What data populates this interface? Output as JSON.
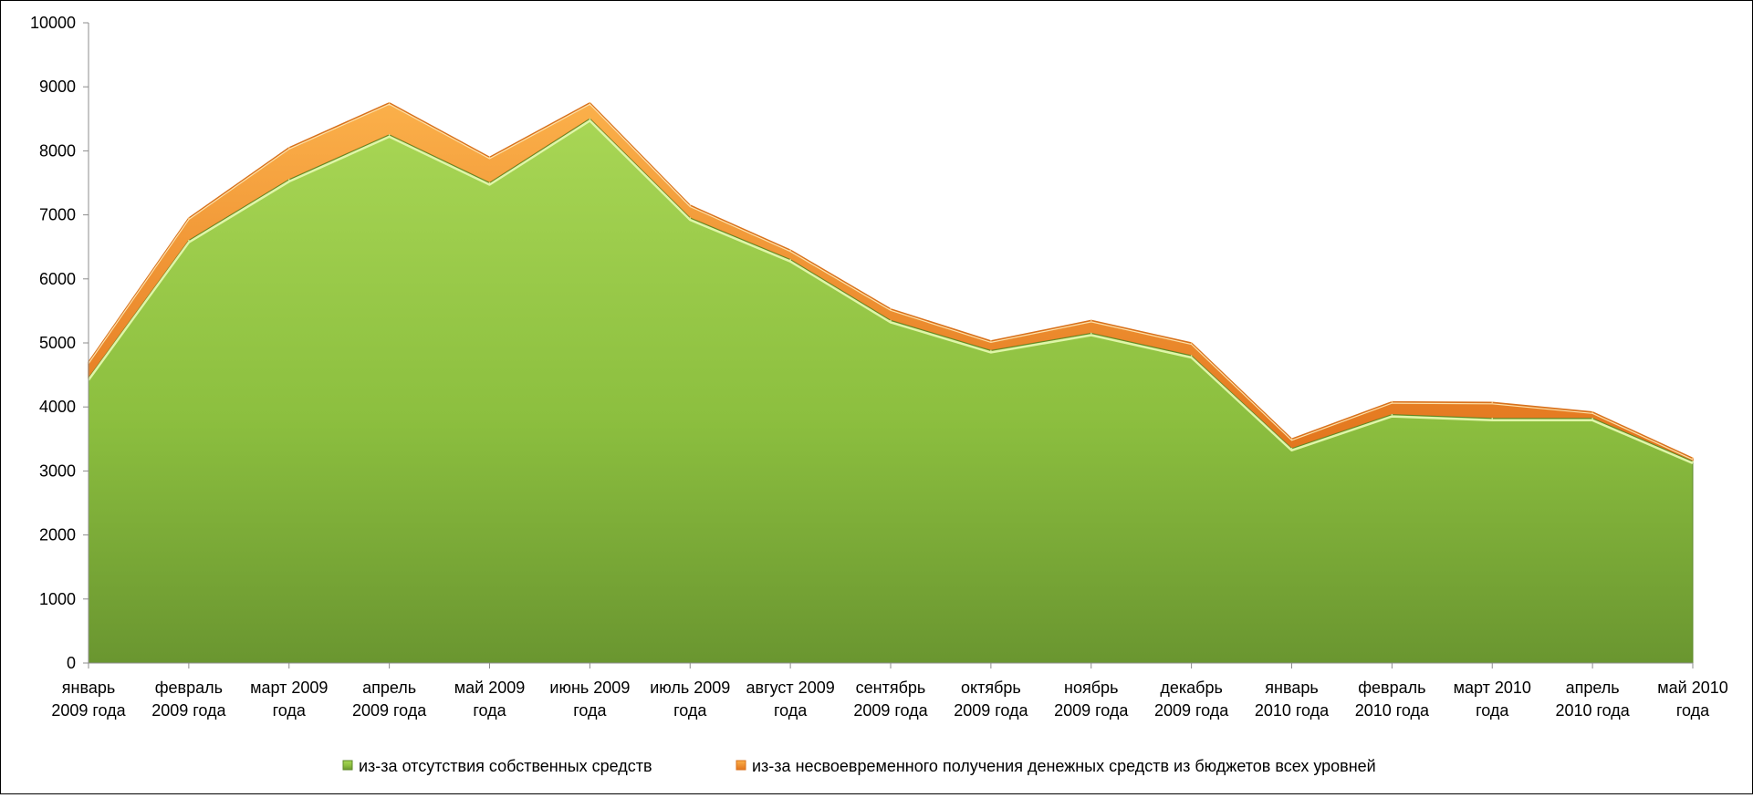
{
  "chart_data": {
    "type": "area",
    "stacked": true,
    "categories": [
      "январь 2009 года",
      "февраль 2009 года",
      "март 2009 года",
      "апрель 2009 года",
      "май 2009 года",
      "июнь 2009 года",
      "июль 2009 года",
      "август 2009 года",
      "сентябрь 2009 года",
      "октябрь 2009 года",
      "ноябрь 2009 года",
      "декабрь 2009 года",
      "январь 2010 года",
      "февраль 2010 года",
      "март 2010 года",
      "апрель 2010 года",
      "май 2010 года"
    ],
    "category_label_lines": [
      [
        "январь",
        "2009 года"
      ],
      [
        "февраль",
        "2009 года"
      ],
      [
        "март 2009",
        "года"
      ],
      [
        "апрель",
        "2009 года"
      ],
      [
        "май 2009",
        "года"
      ],
      [
        "июнь 2009",
        "года"
      ],
      [
        "июль 2009",
        "года"
      ],
      [
        "август 2009",
        "года"
      ],
      [
        "сентябрь",
        "2009 года"
      ],
      [
        "октябрь",
        "2009 года"
      ],
      [
        "ноябрь",
        "2009 года"
      ],
      [
        "декабрь",
        "2009 года"
      ],
      [
        "январь",
        "2010 года"
      ],
      [
        "февраль",
        "2010 года"
      ],
      [
        "март 2010",
        "года"
      ],
      [
        "апрель",
        "2010 года"
      ],
      [
        "май 2010",
        "года"
      ]
    ],
    "series": [
      {
        "name": "из-за отсутствия собственных средств",
        "color": "#8fbe3c",
        "values": [
          4450,
          6600,
          7550,
          8250,
          7500,
          8500,
          6950,
          6300,
          5350,
          4880,
          5150,
          4800,
          3350,
          3880,
          3820,
          3820,
          3150
        ]
      },
      {
        "name": "из-за несвоевременного получения денежных средств из бюджетов всех уровней",
        "color": "#f0902a",
        "values": [
          250,
          350,
          500,
          500,
          400,
          250,
          200,
          150,
          180,
          150,
          200,
          200,
          150,
          200,
          250,
          100,
          50
        ]
      }
    ],
    "ylim": [
      0,
      10000
    ],
    "yticks": [
      0,
      1000,
      2000,
      3000,
      4000,
      5000,
      6000,
      7000,
      8000,
      9000,
      10000
    ],
    "ytick_labels": [
      "0",
      "1000",
      "2000",
      "3000",
      "4000",
      "5000",
      "6000",
      "7000",
      "8000",
      "9000",
      "10000"
    ],
    "title": "",
    "xlabel": "",
    "ylabel": "",
    "grid": false,
    "legend_position": "bottom"
  }
}
